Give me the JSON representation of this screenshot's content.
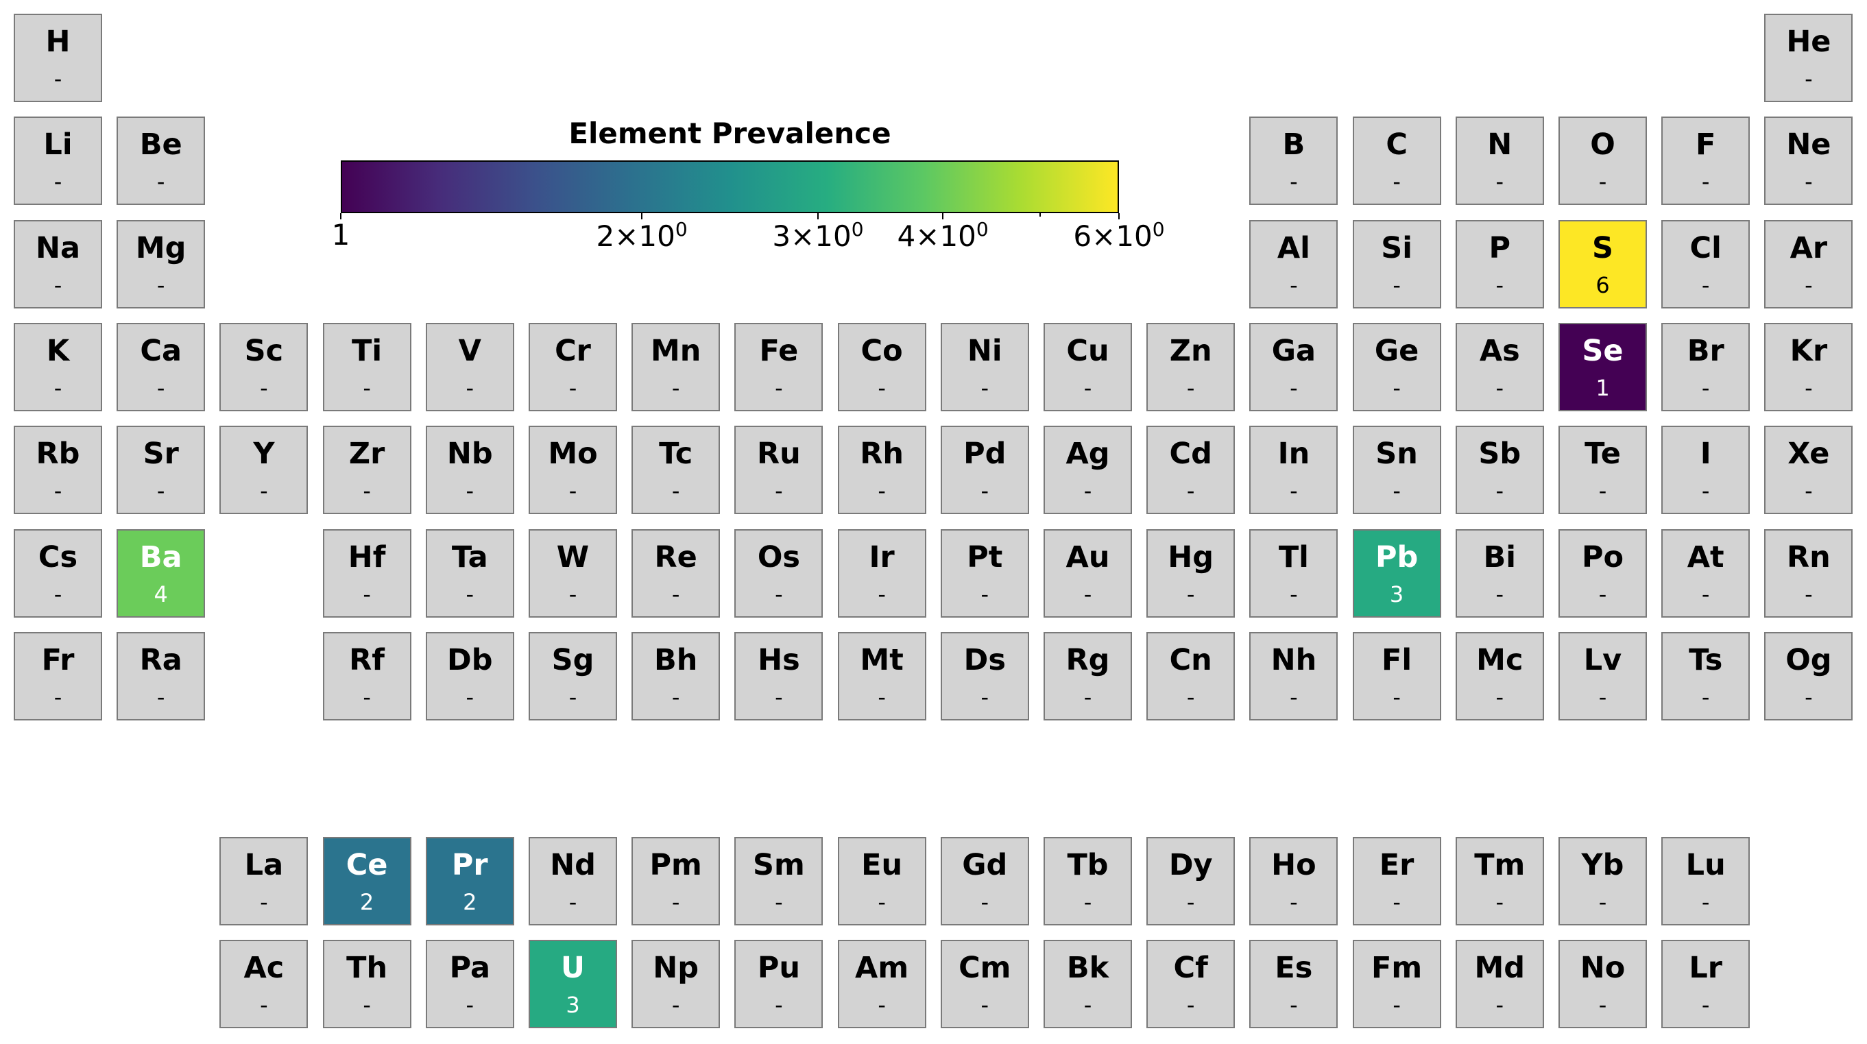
{
  "chart_data": {
    "type": "heatmap",
    "title": "Element Prevalence",
    "scale": "log",
    "colormap": "viridis",
    "color_range": [
      1,
      6
    ],
    "colorbar_ticks": [
      {
        "value": 1,
        "mantissa": "1",
        "exponent": ""
      },
      {
        "value": 2,
        "mantissa": "2×10",
        "exponent": "0"
      },
      {
        "value": 3,
        "mantissa": "3×10",
        "exponent": "0"
      },
      {
        "value": 4,
        "mantissa": "4×10",
        "exponent": "0"
      },
      {
        "value": 6,
        "mantissa": "6×10",
        "exponent": "0"
      }
    ],
    "missing_label": "-",
    "missing_color": "#d3d3d3",
    "elements": [
      {
        "symbol": "H",
        "row": 1,
        "col": 1,
        "value": null
      },
      {
        "symbol": "He",
        "row": 1,
        "col": 18,
        "value": null
      },
      {
        "symbol": "Li",
        "row": 2,
        "col": 1,
        "value": null
      },
      {
        "symbol": "Be",
        "row": 2,
        "col": 2,
        "value": null
      },
      {
        "symbol": "B",
        "row": 2,
        "col": 13,
        "value": null
      },
      {
        "symbol": "C",
        "row": 2,
        "col": 14,
        "value": null
      },
      {
        "symbol": "N",
        "row": 2,
        "col": 15,
        "value": null
      },
      {
        "symbol": "O",
        "row": 2,
        "col": 16,
        "value": null
      },
      {
        "symbol": "F",
        "row": 2,
        "col": 17,
        "value": null
      },
      {
        "symbol": "Ne",
        "row": 2,
        "col": 18,
        "value": null
      },
      {
        "symbol": "Na",
        "row": 3,
        "col": 1,
        "value": null
      },
      {
        "symbol": "Mg",
        "row": 3,
        "col": 2,
        "value": null
      },
      {
        "symbol": "Al",
        "row": 3,
        "col": 13,
        "value": null
      },
      {
        "symbol": "Si",
        "row": 3,
        "col": 14,
        "value": null
      },
      {
        "symbol": "P",
        "row": 3,
        "col": 15,
        "value": null
      },
      {
        "symbol": "S",
        "row": 3,
        "col": 16,
        "value": 6
      },
      {
        "symbol": "Cl",
        "row": 3,
        "col": 17,
        "value": null
      },
      {
        "symbol": "Ar",
        "row": 3,
        "col": 18,
        "value": null
      },
      {
        "symbol": "K",
        "row": 4,
        "col": 1,
        "value": null
      },
      {
        "symbol": "Ca",
        "row": 4,
        "col": 2,
        "value": null
      },
      {
        "symbol": "Sc",
        "row": 4,
        "col": 3,
        "value": null
      },
      {
        "symbol": "Ti",
        "row": 4,
        "col": 4,
        "value": null
      },
      {
        "symbol": "V",
        "row": 4,
        "col": 5,
        "value": null
      },
      {
        "symbol": "Cr",
        "row": 4,
        "col": 6,
        "value": null
      },
      {
        "symbol": "Mn",
        "row": 4,
        "col": 7,
        "value": null
      },
      {
        "symbol": "Fe",
        "row": 4,
        "col": 8,
        "value": null
      },
      {
        "symbol": "Co",
        "row": 4,
        "col": 9,
        "value": null
      },
      {
        "symbol": "Ni",
        "row": 4,
        "col": 10,
        "value": null
      },
      {
        "symbol": "Cu",
        "row": 4,
        "col": 11,
        "value": null
      },
      {
        "symbol": "Zn",
        "row": 4,
        "col": 12,
        "value": null
      },
      {
        "symbol": "Ga",
        "row": 4,
        "col": 13,
        "value": null
      },
      {
        "symbol": "Ge",
        "row": 4,
        "col": 14,
        "value": null
      },
      {
        "symbol": "As",
        "row": 4,
        "col": 15,
        "value": null
      },
      {
        "symbol": "Se",
        "row": 4,
        "col": 16,
        "value": 1
      },
      {
        "symbol": "Br",
        "row": 4,
        "col": 17,
        "value": null
      },
      {
        "symbol": "Kr",
        "row": 4,
        "col": 18,
        "value": null
      },
      {
        "symbol": "Rb",
        "row": 5,
        "col": 1,
        "value": null
      },
      {
        "symbol": "Sr",
        "row": 5,
        "col": 2,
        "value": null
      },
      {
        "symbol": "Y",
        "row": 5,
        "col": 3,
        "value": null
      },
      {
        "symbol": "Zr",
        "row": 5,
        "col": 4,
        "value": null
      },
      {
        "symbol": "Nb",
        "row": 5,
        "col": 5,
        "value": null
      },
      {
        "symbol": "Mo",
        "row": 5,
        "col": 6,
        "value": null
      },
      {
        "symbol": "Tc",
        "row": 5,
        "col": 7,
        "value": null
      },
      {
        "symbol": "Ru",
        "row": 5,
        "col": 8,
        "value": null
      },
      {
        "symbol": "Rh",
        "row": 5,
        "col": 9,
        "value": null
      },
      {
        "symbol": "Pd",
        "row": 5,
        "col": 10,
        "value": null
      },
      {
        "symbol": "Ag",
        "row": 5,
        "col": 11,
        "value": null
      },
      {
        "symbol": "Cd",
        "row": 5,
        "col": 12,
        "value": null
      },
      {
        "symbol": "In",
        "row": 5,
        "col": 13,
        "value": null
      },
      {
        "symbol": "Sn",
        "row": 5,
        "col": 14,
        "value": null
      },
      {
        "symbol": "Sb",
        "row": 5,
        "col": 15,
        "value": null
      },
      {
        "symbol": "Te",
        "row": 5,
        "col": 16,
        "value": null
      },
      {
        "symbol": "I",
        "row": 5,
        "col": 17,
        "value": null
      },
      {
        "symbol": "Xe",
        "row": 5,
        "col": 18,
        "value": null
      },
      {
        "symbol": "Cs",
        "row": 6,
        "col": 1,
        "value": null
      },
      {
        "symbol": "Ba",
        "row": 6,
        "col": 2,
        "value": 4
      },
      {
        "symbol": "Hf",
        "row": 6,
        "col": 4,
        "value": null
      },
      {
        "symbol": "Ta",
        "row": 6,
        "col": 5,
        "value": null
      },
      {
        "symbol": "W",
        "row": 6,
        "col": 6,
        "value": null
      },
      {
        "symbol": "Re",
        "row": 6,
        "col": 7,
        "value": null
      },
      {
        "symbol": "Os",
        "row": 6,
        "col": 8,
        "value": null
      },
      {
        "symbol": "Ir",
        "row": 6,
        "col": 9,
        "value": null
      },
      {
        "symbol": "Pt",
        "row": 6,
        "col": 10,
        "value": null
      },
      {
        "symbol": "Au",
        "row": 6,
        "col": 11,
        "value": null
      },
      {
        "symbol": "Hg",
        "row": 6,
        "col": 12,
        "value": null
      },
      {
        "symbol": "Tl",
        "row": 6,
        "col": 13,
        "value": null
      },
      {
        "symbol": "Pb",
        "row": 6,
        "col": 14,
        "value": 3
      },
      {
        "symbol": "Bi",
        "row": 6,
        "col": 15,
        "value": null
      },
      {
        "symbol": "Po",
        "row": 6,
        "col": 16,
        "value": null
      },
      {
        "symbol": "At",
        "row": 6,
        "col": 17,
        "value": null
      },
      {
        "symbol": "Rn",
        "row": 6,
        "col": 18,
        "value": null
      },
      {
        "symbol": "Fr",
        "row": 7,
        "col": 1,
        "value": null
      },
      {
        "symbol": "Ra",
        "row": 7,
        "col": 2,
        "value": null
      },
      {
        "symbol": "Rf",
        "row": 7,
        "col": 4,
        "value": null
      },
      {
        "symbol": "Db",
        "row": 7,
        "col": 5,
        "value": null
      },
      {
        "symbol": "Sg",
        "row": 7,
        "col": 6,
        "value": null
      },
      {
        "symbol": "Bh",
        "row": 7,
        "col": 7,
        "value": null
      },
      {
        "symbol": "Hs",
        "row": 7,
        "col": 8,
        "value": null
      },
      {
        "symbol": "Mt",
        "row": 7,
        "col": 9,
        "value": null
      },
      {
        "symbol": "Ds",
        "row": 7,
        "col": 10,
        "value": null
      },
      {
        "symbol": "Rg",
        "row": 7,
        "col": 11,
        "value": null
      },
      {
        "symbol": "Cn",
        "row": 7,
        "col": 12,
        "value": null
      },
      {
        "symbol": "Nh",
        "row": 7,
        "col": 13,
        "value": null
      },
      {
        "symbol": "Fl",
        "row": 7,
        "col": 14,
        "value": null
      },
      {
        "symbol": "Mc",
        "row": 7,
        "col": 15,
        "value": null
      },
      {
        "symbol": "Lv",
        "row": 7,
        "col": 16,
        "value": null
      },
      {
        "symbol": "Ts",
        "row": 7,
        "col": 17,
        "value": null
      },
      {
        "symbol": "Og",
        "row": 7,
        "col": 18,
        "value": null
      },
      {
        "symbol": "La",
        "row": 9,
        "col": 3,
        "value": null
      },
      {
        "symbol": "Ce",
        "row": 9,
        "col": 4,
        "value": 2
      },
      {
        "symbol": "Pr",
        "row": 9,
        "col": 5,
        "value": 2
      },
      {
        "symbol": "Nd",
        "row": 9,
        "col": 6,
        "value": null
      },
      {
        "symbol": "Pm",
        "row": 9,
        "col": 7,
        "value": null
      },
      {
        "symbol": "Sm",
        "row": 9,
        "col": 8,
        "value": null
      },
      {
        "symbol": "Eu",
        "row": 9,
        "col": 9,
        "value": null
      },
      {
        "symbol": "Gd",
        "row": 9,
        "col": 10,
        "value": null
      },
      {
        "symbol": "Tb",
        "row": 9,
        "col": 11,
        "value": null
      },
      {
        "symbol": "Dy",
        "row": 9,
        "col": 12,
        "value": null
      },
      {
        "symbol": "Ho",
        "row": 9,
        "col": 13,
        "value": null
      },
      {
        "symbol": "Er",
        "row": 9,
        "col": 14,
        "value": null
      },
      {
        "symbol": "Tm",
        "row": 9,
        "col": 15,
        "value": null
      },
      {
        "symbol": "Yb",
        "row": 9,
        "col": 16,
        "value": null
      },
      {
        "symbol": "Lu",
        "row": 9,
        "col": 17,
        "value": null
      },
      {
        "symbol": "Ac",
        "row": 10,
        "col": 3,
        "value": null
      },
      {
        "symbol": "Th",
        "row": 10,
        "col": 4,
        "value": null
      },
      {
        "symbol": "Pa",
        "row": 10,
        "col": 5,
        "value": null
      },
      {
        "symbol": "U",
        "row": 10,
        "col": 6,
        "value": 3
      },
      {
        "symbol": "Np",
        "row": 10,
        "col": 7,
        "value": null
      },
      {
        "symbol": "Pu",
        "row": 10,
        "col": 8,
        "value": null
      },
      {
        "symbol": "Am",
        "row": 10,
        "col": 9,
        "value": null
      },
      {
        "symbol": "Cm",
        "row": 10,
        "col": 10,
        "value": null
      },
      {
        "symbol": "Bk",
        "row": 10,
        "col": 11,
        "value": null
      },
      {
        "symbol": "Cf",
        "row": 10,
        "col": 12,
        "value": null
      },
      {
        "symbol": "Es",
        "row": 10,
        "col": 13,
        "value": null
      },
      {
        "symbol": "Fm",
        "row": 10,
        "col": 14,
        "value": null
      },
      {
        "symbol": "Md",
        "row": 10,
        "col": 15,
        "value": null
      },
      {
        "symbol": "No",
        "row": 10,
        "col": 16,
        "value": null
      },
      {
        "symbol": "Lr",
        "row": 10,
        "col": 17,
        "value": null
      }
    ]
  }
}
